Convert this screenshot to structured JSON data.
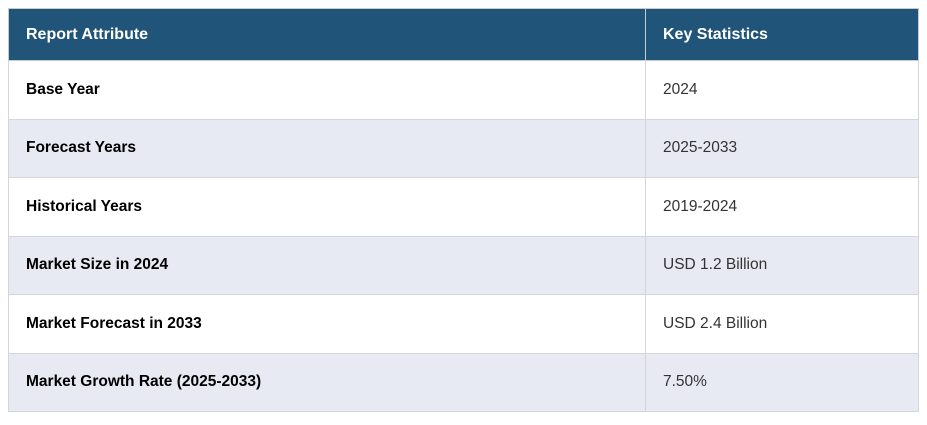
{
  "table": {
    "columns": [
      {
        "label": "Report Attribute"
      },
      {
        "label": "Key Statistics"
      }
    ],
    "rows": [
      {
        "attribute": "Base Year",
        "value": "2024"
      },
      {
        "attribute": "Forecast Years",
        "value": "2025-2033"
      },
      {
        "attribute": "Historical Years",
        "value": "2019-2024"
      },
      {
        "attribute": "Market Size in 2024",
        "value": "USD 1.2 Billion"
      },
      {
        "attribute": "Market Forecast in 2033",
        "value": "USD 2.4 Billion"
      },
      {
        "attribute": "Market Growth Rate (2025-2033)",
        "value": "7.50%"
      }
    ],
    "colors": {
      "header_bg": "#205478",
      "header_text": "#ffffff",
      "row_bg": "#ffffff",
      "row_alt_bg": "#e7e9f3",
      "border": "#d4d6dc",
      "label_text": "#000000",
      "value_text": "#333333"
    }
  }
}
